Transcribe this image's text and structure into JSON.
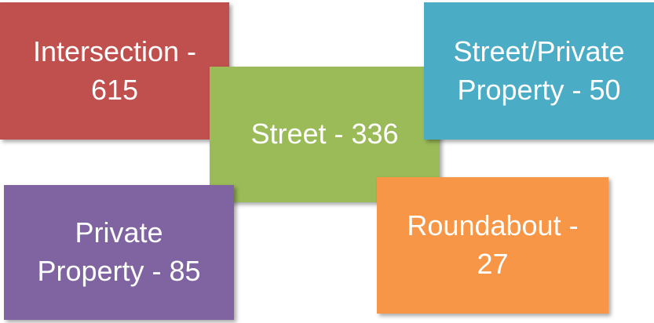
{
  "nodes": [
    {
      "label": "Intersection - 615"
    },
    {
      "label": "Street - 336"
    },
    {
      "label": "Street/Private Property - 50"
    },
    {
      "label": "Private Property - 85"
    },
    {
      "label": "Roundabout - 27"
    }
  ]
}
